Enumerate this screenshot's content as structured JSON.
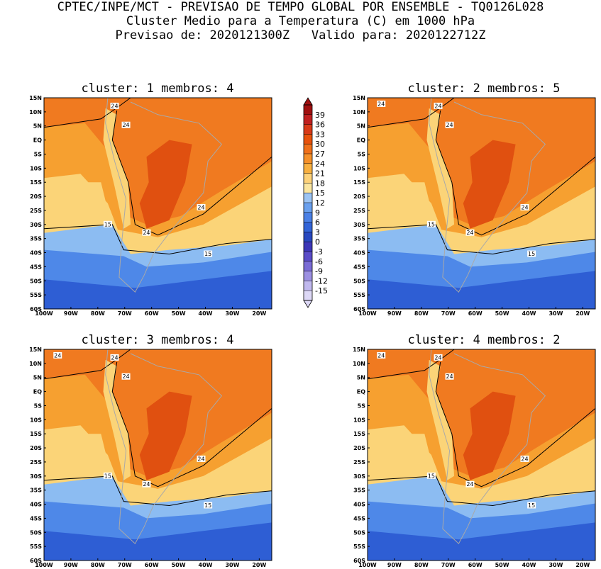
{
  "header": {
    "line1": "CPTEC/INPE/MCT - PREVISAO DE TEMPO GLOBAL POR ENSEMBLE - TQ0126L028",
    "line2": "Cluster Medio para a Temperatura (C) em 1000 hPa",
    "line3": "Previsao de: 2020121300Z   Valido para: 2020122712Z"
  },
  "panels": [
    {
      "title": "cluster: 1  membros: 4",
      "labels": {
        "top": [
          "24",
          "24"
        ],
        "mid": "24",
        "south": [
          "24",
          "15",
          "15"
        ]
      }
    },
    {
      "title": "cluster: 2  membros: 5",
      "labels": {
        "top": [
          "24",
          "24",
          "24"
        ],
        "mid": "24",
        "south": [
          "24",
          "15",
          "15"
        ]
      }
    },
    {
      "title": "cluster: 3  membros: 4",
      "labels": {
        "top": [
          "24",
          "24",
          "24"
        ],
        "mid": "24",
        "south": [
          "24",
          "15",
          "15"
        ]
      }
    },
    {
      "title": "cluster: 4  membros: 2",
      "labels": {
        "top": [
          "24",
          "24",
          "24"
        ],
        "mid": "24",
        "south": [
          "24",
          "15",
          "15"
        ]
      }
    }
  ],
  "axes": {
    "lat_ticks": [
      "15N",
      "10N",
      "5N",
      "EQ",
      "5S",
      "10S",
      "15S",
      "20S",
      "25S",
      "30S",
      "35S",
      "40S",
      "45S",
      "50S",
      "55S",
      "60S"
    ],
    "lon_ticks": [
      "100W",
      "90W",
      "80W",
      "70W",
      "60W",
      "50W",
      "40W",
      "30W",
      "20W"
    ]
  },
  "colorbar": {
    "levels": [
      "39",
      "36",
      "33",
      "30",
      "27",
      "24",
      "21",
      "18",
      "15",
      "12",
      "9",
      "6",
      "3",
      "0",
      "-3",
      "-6",
      "-9",
      "-12",
      "-15"
    ],
    "colors": [
      "#a01010",
      "#c02020",
      "#d83a18",
      "#e8520c",
      "#f0701a",
      "#f5902a",
      "#f8b040",
      "#fdd27a",
      "#fbe6a0",
      "#9cc4f4",
      "#6aa0ee",
      "#4a80e6",
      "#3264d8",
      "#2848c0",
      "#3c36b8",
      "#5a4cc8",
      "#7a6cd6",
      "#9c90e2",
      "#c0b8ee",
      "#ddd8f6"
    ]
  },
  "colors": {
    "warm_hot": "#e05010",
    "warm": "#f07a20",
    "mild": "#f6a030",
    "cool": "#fbd478",
    "cold1": "#8cbcf2",
    "cold2": "#4e88e8",
    "cold3": "#2e5ed4",
    "contour": "#000000",
    "coast": "#a9a9a9"
  }
}
